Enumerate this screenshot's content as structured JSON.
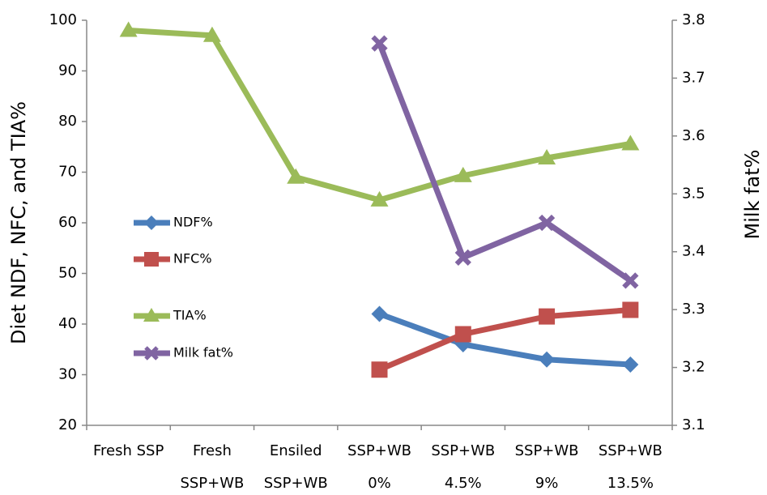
{
  "chart_data": {
    "type": "line",
    "categories": [
      [
        "Fresh SSP"
      ],
      [
        "Fresh",
        "SSP+WB"
      ],
      [
        "Ensiled",
        "SSP+WB"
      ],
      [
        "SSP+WB",
        "0%"
      ],
      [
        "SSP+WB",
        "4.5%"
      ],
      [
        "SSP+WB",
        "9%"
      ],
      [
        "SSP+WB",
        "13.5%"
      ]
    ],
    "ylabel": "Diet NDF, NFC, and TIA%",
    "y2label": "Milk fat%",
    "ylim": [
      20,
      100
    ],
    "yticks": [
      20,
      30,
      40,
      50,
      60,
      70,
      80,
      90,
      100
    ],
    "y2lim": [
      3.1,
      3.8
    ],
    "y2ticks": [
      3.1,
      3.2,
      3.3,
      3.4,
      3.5,
      3.6,
      3.7,
      3.8
    ],
    "grid": false,
    "series": [
      {
        "name": "NDF%",
        "color": "#4a7ebb",
        "marker": "diamond",
        "values": [
          null,
          null,
          null,
          42,
          36,
          33,
          32
        ]
      },
      {
        "name": "NFC%",
        "color": "#c0504d",
        "marker": "square",
        "values": [
          null,
          null,
          null,
          31,
          38,
          41.5,
          42.8
        ]
      },
      {
        "name": "TIA%",
        "color": "#9bbb59",
        "marker": "triangle",
        "values": [
          98,
          97,
          69,
          64.5,
          69.3,
          72.8,
          75.6
        ]
      },
      {
        "name": "Milk fat%",
        "color": "#8064a2",
        "marker": "x",
        "axis": "y2",
        "values": [
          null,
          null,
          null,
          3.76,
          3.39,
          3.45,
          3.35
        ]
      }
    ]
  }
}
